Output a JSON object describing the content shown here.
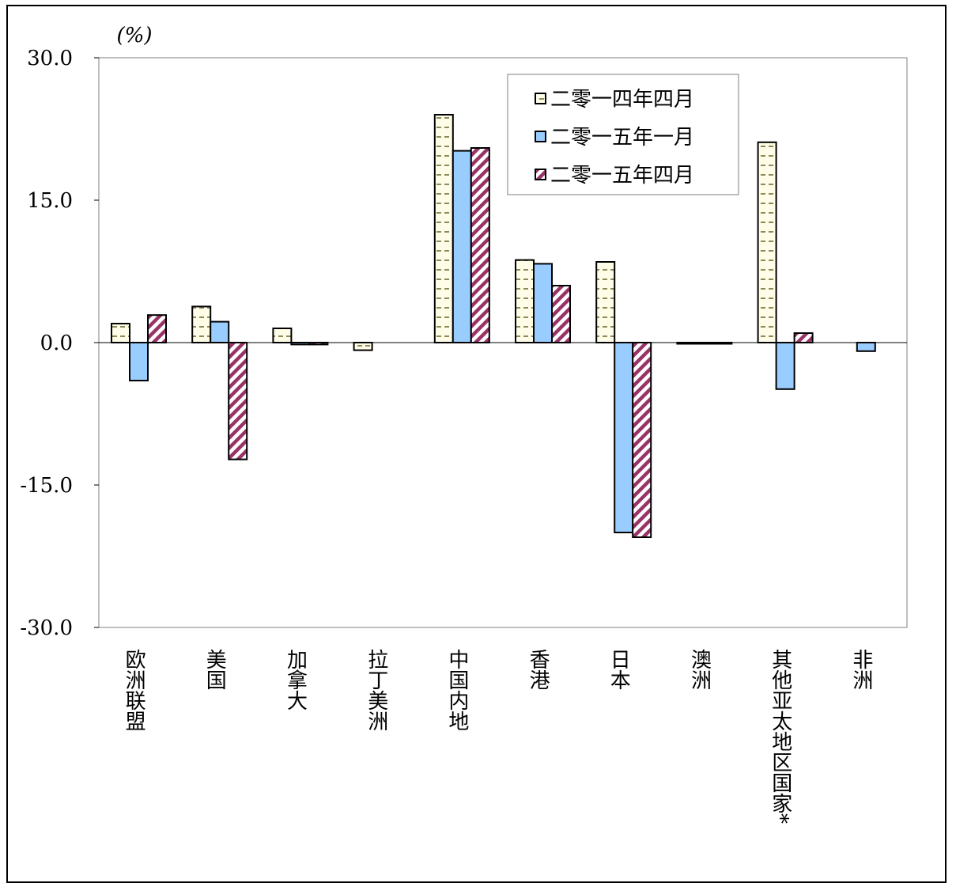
{
  "chart_data": {
    "type": "bar",
    "unit_label": "(%)",
    "ylim": [
      -30,
      30
    ],
    "yticks": [
      -30,
      -15,
      0,
      15,
      30
    ],
    "ytick_labels": [
      "-30.0",
      "-15.0",
      "0.0",
      "15.0",
      "30.0"
    ],
    "categories": [
      "欧洲联盟",
      "美国",
      "加拿大",
      "拉丁美洲",
      "中国内地",
      "香港",
      "日本",
      "澳洲",
      "其他亚太地区国家*",
      "非洲"
    ],
    "series": [
      {
        "name": "二零一四年四月",
        "values": [
          2.0,
          3.8,
          1.5,
          -0.8,
          24.0,
          8.7,
          8.5,
          -0.1,
          21.1,
          0.0
        ],
        "color": "#fffde8",
        "pattern": "dash-dots"
      },
      {
        "name": "二零一五年一月",
        "values": [
          -4.0,
          2.2,
          -0.2,
          0.0,
          20.2,
          8.3,
          -20.0,
          -0.1,
          -4.9,
          -0.9
        ],
        "color": "#99ccff",
        "pattern": "solid"
      },
      {
        "name": "二零一五年四月",
        "values": [
          2.9,
          -12.3,
          -0.2,
          0.0,
          20.5,
          6.0,
          -20.5,
          -0.1,
          1.0,
          0.0
        ],
        "color": "#993366",
        "pattern": "diagonal-stripes"
      }
    ],
    "legend_position": "top-right",
    "grid": false
  }
}
